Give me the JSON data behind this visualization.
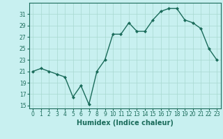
{
  "x": [
    0,
    1,
    2,
    3,
    4,
    5,
    6,
    7,
    8,
    9,
    10,
    11,
    12,
    13,
    14,
    15,
    16,
    17,
    18,
    19,
    20,
    21,
    22,
    23
  ],
  "y": [
    21,
    21.5,
    21,
    20.5,
    20,
    16.5,
    18.5,
    15.2,
    21,
    23,
    27.5,
    27.5,
    29.5,
    28,
    28,
    30,
    31.5,
    32,
    32,
    30,
    29.5,
    28.5,
    25,
    23
  ],
  "xlabel": "Humidex (Indice chaleur)",
  "xlim": [
    -0.5,
    23.5
  ],
  "ylim": [
    14.5,
    33
  ],
  "yticks": [
    15,
    17,
    19,
    21,
    23,
    25,
    27,
    29,
    31
  ],
  "xticks": [
    0,
    1,
    2,
    3,
    4,
    5,
    6,
    7,
    8,
    9,
    10,
    11,
    12,
    13,
    14,
    15,
    16,
    17,
    18,
    19,
    20,
    21,
    22,
    23
  ],
  "line_color": "#1a6b5a",
  "marker": "D",
  "marker_size": 2.0,
  "bg_color": "#c8f0f0",
  "grid_color": "#a8d8d0",
  "line_width": 1.0,
  "tick_fontsize": 5.5,
  "xlabel_fontsize": 7.0
}
